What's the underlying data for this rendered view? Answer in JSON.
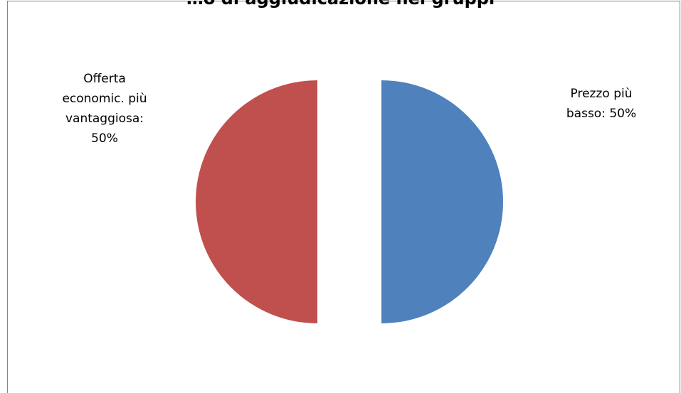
{
  "chart_data": {
    "type": "pie",
    "title": "…o di aggiudicazione nei gruppi",
    "slices": [
      {
        "label": "Prezzo più\nbasso: 50%",
        "value": 50,
        "color": "#4F81BD"
      },
      {
        "label": "Offerta\neconomic. più\nvantaggiosa:\n50%",
        "value": 50,
        "color": "#C0504D"
      }
    ],
    "exploded": true,
    "legend": "none"
  }
}
